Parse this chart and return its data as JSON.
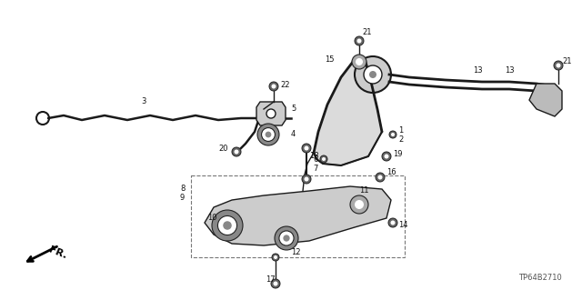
{
  "bg_color": "#ffffff",
  "line_color": "#1a1a1a",
  "diagram_code": "TP64B2710",
  "fig_width": 6.4,
  "fig_height": 3.19,
  "dpi": 100,
  "gray_part": "#888888",
  "gray_light": "#aaaaaa",
  "gray_fill": "#cccccc",
  "label_fs": 6.0,
  "label_color": "#111111"
}
